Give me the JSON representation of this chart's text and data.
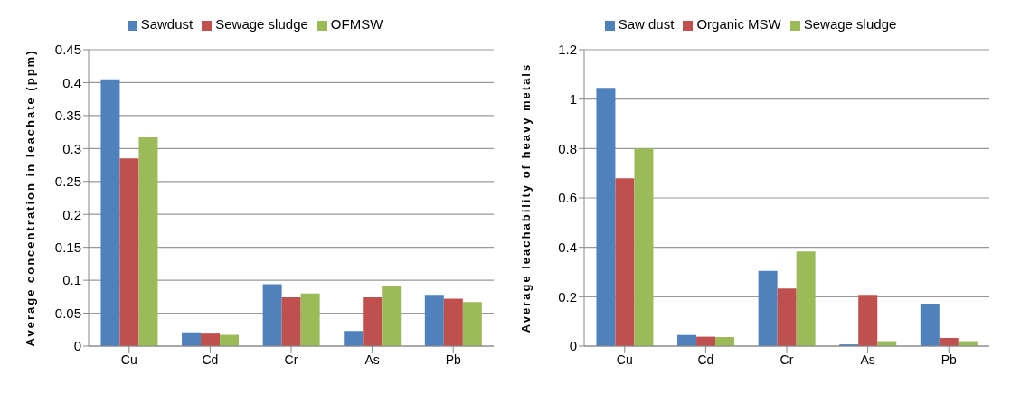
{
  "chart_data": [
    {
      "type": "bar",
      "ylabel": "Average concentration in leachate (ppm)",
      "categories": [
        "Cu",
        "Cd",
        "Cr",
        "As",
        "Pb"
      ],
      "series": [
        {
          "name": "Sawdust",
          "color": "#4f81bd",
          "values": [
            0.405,
            0.021,
            0.094,
            0.023,
            0.078
          ]
        },
        {
          "name": "Sewage sludge",
          "color": "#c0504d",
          "values": [
            0.285,
            0.019,
            0.074,
            0.074,
            0.072
          ]
        },
        {
          "name": "OFMSW",
          "color": "#9bbb59",
          "values": [
            0.317,
            0.017,
            0.08,
            0.091,
            0.067
          ]
        }
      ],
      "ylim": [
        0,
        0.45
      ],
      "yticks": [
        0,
        0.05,
        0.1,
        0.15,
        0.2,
        0.25,
        0.3,
        0.35,
        0.4,
        0.45
      ],
      "grid": "y",
      "legend": "top"
    },
    {
      "type": "bar",
      "ylabel": "Average leachability of heavy metals",
      "categories": [
        "Cu",
        "Cd",
        "Cr",
        "As",
        "Pb"
      ],
      "series": [
        {
          "name": "Saw dust",
          "color": "#4f81bd",
          "values": [
            1.045,
            0.045,
            0.305,
            0.007,
            0.172
          ]
        },
        {
          "name": "Organic MSW",
          "color": "#c0504d",
          "values": [
            0.68,
            0.038,
            0.233,
            0.208,
            0.033
          ]
        },
        {
          "name": "Sewage sludge",
          "color": "#9bbb59",
          "values": [
            0.8,
            0.037,
            0.383,
            0.02,
            0.02
          ]
        }
      ],
      "ylim": [
        0,
        1.2
      ],
      "yticks": [
        0,
        0.2,
        0.4,
        0.6,
        0.8,
        1,
        1.2
      ],
      "grid": "y",
      "legend": "top"
    }
  ]
}
